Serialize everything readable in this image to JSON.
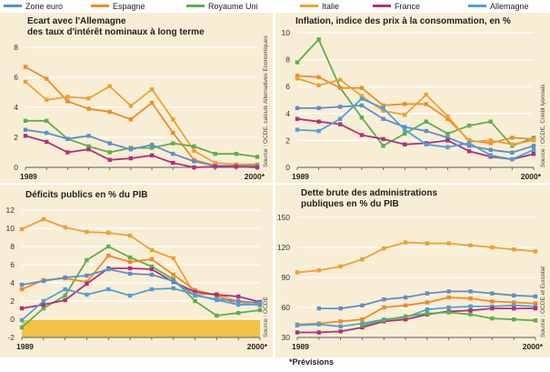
{
  "legend": [
    {
      "name": "Zone euro",
      "color": "#5b8fc8"
    },
    {
      "name": "Espagne",
      "color": "#f08a24"
    },
    {
      "name": "Royaume Uni",
      "color": "#5fae4c"
    },
    {
      "name": "Italie",
      "color": "#f0a030"
    },
    {
      "name": "France",
      "color": "#b0307a"
    },
    {
      "name": "Allemagne",
      "color": "#4fa0d8"
    }
  ],
  "footnote": "*Prévisions",
  "chart_data": [
    {
      "type": "line",
      "title": "Ecart avec l'Allemagne\ndes taux d'intérêt nominaux à long terme",
      "source": "Source : OCDE, calculs Alternatives Economiques",
      "x": [
        1989,
        1990,
        1991,
        1992,
        1993,
        1994,
        1995,
        1996,
        1997,
        1998,
        1999,
        2000
      ],
      "x_tick_labels": [
        "1989",
        "2000*"
      ],
      "ylim": [
        0,
        8
      ],
      "yticks": [
        0,
        2,
        4,
        6,
        8
      ],
      "series": [
        {
          "name": "Espagne",
          "color": "#f08a24",
          "values": [
            6.7,
            5.9,
            4.4,
            3.9,
            3.7,
            3.2,
            4.3,
            2.3,
            0.5,
            0.1,
            0.05,
            0.0
          ]
        },
        {
          "name": "Italie",
          "color": "#f0a030",
          "values": [
            5.7,
            4.5,
            4.7,
            4.6,
            5.4,
            4.1,
            5.2,
            3.2,
            1.1,
            0.3,
            0.2,
            0.2
          ]
        },
        {
          "name": "Royaume Uni",
          "color": "#5fae4c",
          "values": [
            3.1,
            3.1,
            1.9,
            1.4,
            1.0,
            1.3,
            1.3,
            1.6,
            1.4,
            0.9,
            0.9,
            0.7
          ]
        },
        {
          "name": "Zone euro",
          "color": "#5b8fc8",
          "values": [
            2.5,
            2.3,
            1.9,
            2.1,
            1.6,
            1.2,
            1.5,
            0.9,
            0.4,
            0.1,
            0.1,
            0.1
          ]
        },
        {
          "name": "France",
          "color": "#b0307a",
          "values": [
            2.1,
            1.7,
            1.0,
            1.2,
            0.5,
            0.6,
            0.8,
            0.3,
            0.0,
            0.05,
            0.05,
            0.0
          ]
        }
      ]
    },
    {
      "type": "line",
      "title": "Inflation, indice des prix à la consommation, en %",
      "source": "Source : OCDE, Crédit lyonnais",
      "x": [
        1989,
        1990,
        1991,
        1992,
        1993,
        1994,
        1995,
        1996,
        1997,
        1998,
        1999,
        2000
      ],
      "x_tick_labels": [
        "1989",
        "2000*"
      ],
      "ylim": [
        0,
        10
      ],
      "yticks": [
        0,
        2,
        4,
        6,
        8,
        10
      ],
      "series": [
        {
          "name": "Royaume Uni",
          "color": "#5fae4c",
          "values": [
            7.8,
            9.5,
            5.9,
            3.7,
            1.6,
            2.5,
            3.4,
            2.5,
            3.1,
            3.4,
            1.6,
            2.2
          ]
        },
        {
          "name": "Espagne",
          "color": "#f08a24",
          "values": [
            6.8,
            6.7,
            5.9,
            5.9,
            4.6,
            4.7,
            4.7,
            3.6,
            2.0,
            1.8,
            2.2,
            2.1
          ]
        },
        {
          "name": "Italie",
          "color": "#f0a030",
          "values": [
            6.6,
            6.1,
            6.5,
            5.3,
            4.2,
            3.9,
            5.4,
            3.8,
            1.9,
            2.0,
            1.7,
            2.0
          ]
        },
        {
          "name": "Zone euro",
          "color": "#5b8fc8",
          "values": [
            4.4,
            4.4,
            4.5,
            4.6,
            3.6,
            3.0,
            2.7,
            2.2,
            1.6,
            1.3,
            1.1,
            1.6
          ]
        },
        {
          "name": "France",
          "color": "#b0307a",
          "values": [
            3.6,
            3.4,
            3.2,
            2.4,
            2.1,
            1.7,
            1.8,
            2.0,
            1.2,
            0.8,
            0.6,
            1.0
          ]
        },
        {
          "name": "Allemagne",
          "color": "#4fa0d8",
          "values": [
            2.8,
            2.7,
            3.6,
            5.1,
            4.4,
            2.8,
            1.7,
            1.5,
            1.8,
            0.9,
            0.6,
            1.3
          ]
        }
      ]
    },
    {
      "type": "line",
      "title": "Déficits publics en % du PIB",
      "source": "Source : OCDE",
      "x": [
        1989,
        1990,
        1991,
        1992,
        1993,
        1994,
        1995,
        1996,
        1997,
        1998,
        1999,
        2000
      ],
      "x_tick_labels": [
        "1989",
        "2000*"
      ],
      "ylim": [
        -2,
        12
      ],
      "yticks": [
        -2,
        0,
        2,
        4,
        6,
        8,
        10,
        12
      ],
      "highlight_band": [
        -2,
        0
      ],
      "series": [
        {
          "name": "Italie",
          "color": "#f0a030",
          "values": [
            9.9,
            11.0,
            10.1,
            9.6,
            9.5,
            9.2,
            7.6,
            6.7,
            2.7,
            2.8,
            1.9,
            1.5
          ]
        },
        {
          "name": "Royaume Uni",
          "color": "#5fae4c",
          "values": [
            -0.9,
            1.2,
            2.6,
            6.5,
            8.0,
            6.8,
            5.8,
            4.4,
            2.0,
            0.4,
            0.7,
            1.0
          ]
        },
        {
          "name": "Espagne",
          "color": "#f08a24",
          "values": [
            3.3,
            4.3,
            4.5,
            4.1,
            7.0,
            6.3,
            6.6,
            4.9,
            3.2,
            2.6,
            1.6,
            1.7
          ]
        },
        {
          "name": "France",
          "color": "#b0307a",
          "values": [
            1.2,
            1.6,
            2.1,
            3.9,
            5.6,
            5.6,
            5.5,
            4.1,
            3.0,
            2.7,
            2.5,
            1.9
          ]
        },
        {
          "name": "Zone euro",
          "color": "#5b8fc8",
          "values": [
            3.8,
            4.2,
            4.6,
            4.8,
            5.5,
            5.0,
            4.9,
            4.2,
            2.6,
            2.2,
            2.0,
            1.8
          ]
        },
        {
          "name": "Allemagne",
          "color": "#4fa0d8",
          "values": [
            -0.1,
            2.0,
            3.3,
            2.7,
            3.3,
            2.6,
            3.3,
            3.4,
            2.7,
            2.1,
            1.6,
            1.6
          ]
        }
      ]
    },
    {
      "type": "line",
      "title": "Dette brute des administrations\npubliques en % du PIB",
      "source": "Source : OCDE et Eurostat",
      "x": [
        1989,
        1990,
        1991,
        1992,
        1993,
        1994,
        1995,
        1996,
        1997,
        1998,
        1999,
        2000
      ],
      "x_tick_labels": [
        "1989",
        "2000*"
      ],
      "ylim": [
        30,
        150
      ],
      "yticks": [
        30,
        60,
        90,
        120,
        150
      ],
      "series": [
        {
          "name": "Italie",
          "color": "#f0a030",
          "values": [
            95,
            97,
            101,
            108,
            119,
            125,
            124,
            124,
            122,
            120,
            118,
            116
          ]
        },
        {
          "name": "Zone euro",
          "color": "#5b8fc8",
          "values": [
            null,
            59,
            59,
            62,
            68,
            70,
            74,
            76,
            76,
            74,
            72,
            71
          ]
        },
        {
          "name": "Espagne",
          "color": "#f08a24",
          "values": [
            43,
            44,
            46,
            48,
            60,
            62,
            65,
            70,
            69,
            66,
            65,
            64
          ]
        },
        {
          "name": "Allemagne",
          "color": "#4fa0d8",
          "values": [
            42,
            43,
            41,
            44,
            48,
            50,
            58,
            60,
            61,
            61,
            62,
            61
          ]
        },
        {
          "name": "France",
          "color": "#b0307a",
          "values": [
            35,
            35,
            36,
            40,
            46,
            48,
            53,
            56,
            57,
            59,
            59,
            59
          ]
        },
        {
          "name": "Royaume Uni",
          "color": "#5fae4c",
          "values": [
            null,
            null,
            null,
            42,
            47,
            51,
            54,
            55,
            53,
            49,
            48,
            47
          ]
        }
      ]
    }
  ]
}
